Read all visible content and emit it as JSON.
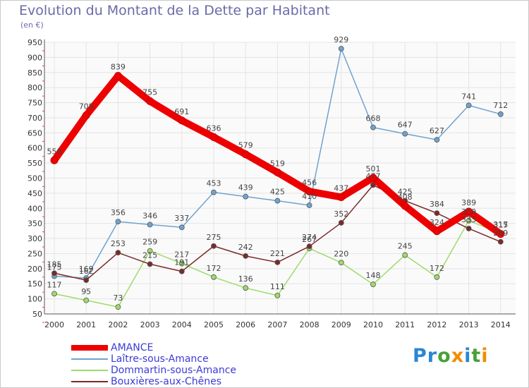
{
  "chart_data": {
    "type": "line",
    "title": "Evolution du Montant de la Dette par Habitant",
    "unit_label": "(en €)",
    "x": [
      "2000",
      "2001",
      "2002",
      "2003",
      "2004",
      "2005",
      "2006",
      "2007",
      "2008",
      "2009",
      "2010",
      "2011",
      "2012",
      "2013",
      "2014"
    ],
    "ylim": [
      50,
      950
    ],
    "yticks": [
      50,
      100,
      150,
      200,
      250,
      300,
      350,
      400,
      450,
      500,
      550,
      600,
      650,
      700,
      750,
      800,
      850,
      900,
      950
    ],
    "grid": true,
    "legend_position": "bottom-left",
    "series": [
      {
        "name": "AMANCE",
        "color": "#ee0000",
        "values": [
          559,
          708,
          839,
          755,
          691,
          636,
          579,
          519,
          456,
          437,
          501,
          408,
          324,
          389,
          315
        ]
      },
      {
        "name": "Laître-sous-Amance",
        "color": "#6fa3cf",
        "values": [
          175,
          169,
          356,
          346,
          337,
          453,
          439,
          425,
          410,
          929,
          668,
          647,
          627,
          741,
          712
        ]
      },
      {
        "name": "Dommartin-sous-Amance",
        "color": "#9edb6a",
        "values": [
          117,
          95,
          73,
          259,
          217,
          172,
          136,
          111,
          267,
          220,
          148,
          245,
          172,
          359,
          317
        ]
      },
      {
        "name": "Bouxières-aux-Chênes",
        "color": "#7b2a2a",
        "values": [
          185,
          162,
          253,
          215,
          191,
          275,
          242,
          221,
          274,
          352,
          477,
          425,
          384,
          333,
          289
        ]
      }
    ]
  },
  "logo": {
    "text": "Proxiti",
    "letter_colors": [
      "#2b86d4",
      "#2b86d4",
      "#4aa13a",
      "#f28c00",
      "#2b86d4",
      "#4aa13a",
      "#f28c00"
    ]
  }
}
